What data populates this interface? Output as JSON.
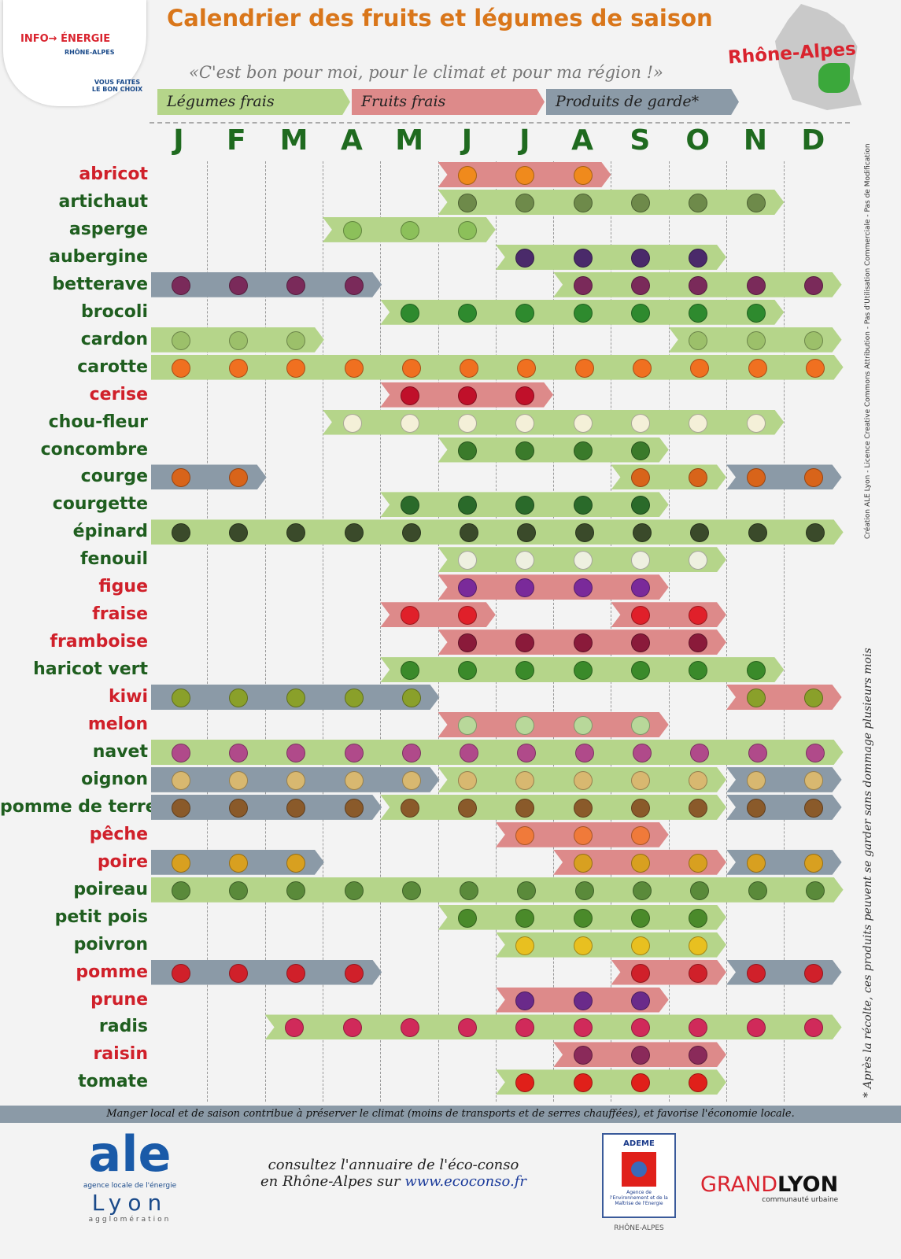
{
  "header": {
    "title": "Calendrier des fruits et légumes de saison",
    "slogan": "«C'est bon pour moi, pour le climat et pour ma région !»",
    "region": "Rhône-Alpes",
    "info_logo": {
      "line1": "INFO→ ÉNERGIE",
      "line2": "RHÔNE-ALPES",
      "tag": "VOUS FAITES LE BON CHOIX"
    }
  },
  "legend": {
    "legume": "Légumes frais",
    "fruit": "Fruits frais",
    "garde": "Produits de garde*"
  },
  "colors": {
    "legume": "#b5d58a",
    "fruit": "#dd8a8a",
    "garde": "#8b9aa7",
    "legume_name": "#1f5e1f",
    "fruit_name": "#d0202a",
    "title": "#d9761a"
  },
  "months": [
    "J",
    "F",
    "M",
    "A",
    "M",
    "J",
    "J",
    "A",
    "S",
    "O",
    "N",
    "D"
  ],
  "items": [
    {
      "name": "abricot",
      "kind": "fruit",
      "icon": "apricot-icon",
      "icon_color": "#f08a1c",
      "bars": [
        {
          "type": "fruit",
          "from": 6,
          "to": 8
        }
      ]
    },
    {
      "name": "artichaut",
      "kind": "legume",
      "icon": "artichoke-icon",
      "icon_color": "#6e8a4a",
      "bars": [
        {
          "type": "legume",
          "from": 6,
          "to": 11
        }
      ]
    },
    {
      "name": "asperge",
      "kind": "legume",
      "icon": "asparagus-icon",
      "icon_color": "#8cc05a",
      "bars": [
        {
          "type": "legume",
          "from": 4,
          "to": 6
        }
      ]
    },
    {
      "name": "aubergine",
      "kind": "legume",
      "icon": "eggplant-icon",
      "icon_color": "#4a2a6a",
      "bars": [
        {
          "type": "legume",
          "from": 7,
          "to": 10
        }
      ]
    },
    {
      "name": "betterave",
      "kind": "legume",
      "icon": "beet-icon",
      "icon_color": "#7a2a5a",
      "bars": [
        {
          "type": "garde",
          "from": 1,
          "to": 4
        },
        {
          "type": "legume",
          "from": 8,
          "to": 12
        }
      ]
    },
    {
      "name": "brocoli",
      "kind": "legume",
      "icon": "broccoli-icon",
      "icon_color": "#2e8a2e",
      "bars": [
        {
          "type": "legume",
          "from": 5,
          "to": 11
        }
      ]
    },
    {
      "name": "cardon",
      "kind": "legume",
      "icon": "cardoon-icon",
      "icon_color": "#9cc06a",
      "bars": [
        {
          "type": "legume",
          "from": 1,
          "to": 3
        },
        {
          "type": "legume",
          "from": 10,
          "to": 12
        }
      ]
    },
    {
      "name": "carotte",
      "kind": "legume",
      "icon": "carrot-icon",
      "icon_color": "#f07020",
      "bars": [
        {
          "type": "legume",
          "from": 1,
          "to": 12
        }
      ]
    },
    {
      "name": "cerise",
      "kind": "fruit",
      "icon": "cherry-icon",
      "icon_color": "#c0102a",
      "bars": [
        {
          "type": "fruit",
          "from": 5,
          "to": 7
        }
      ]
    },
    {
      "name": "chou-fleur",
      "kind": "legume",
      "icon": "cauliflower-icon",
      "icon_color": "#f4f0d8",
      "bars": [
        {
          "type": "legume",
          "from": 4,
          "to": 11
        }
      ]
    },
    {
      "name": "concombre",
      "kind": "legume",
      "icon": "cucumber-icon",
      "icon_color": "#3a7a2a",
      "bars": [
        {
          "type": "legume",
          "from": 6,
          "to": 9
        }
      ]
    },
    {
      "name": "courge",
      "kind": "legume",
      "icon": "pumpkin-icon",
      "icon_color": "#d8641a",
      "bars": [
        {
          "type": "garde",
          "from": 1,
          "to": 2
        },
        {
          "type": "legume",
          "from": 9,
          "to": 10
        },
        {
          "type": "garde",
          "from": 11,
          "to": 12
        }
      ]
    },
    {
      "name": "courgette",
      "kind": "legume",
      "icon": "zucchini-icon",
      "icon_color": "#2a6a2a",
      "bars": [
        {
          "type": "legume",
          "from": 5,
          "to": 9
        }
      ]
    },
    {
      "name": "épinard",
      "kind": "legume",
      "icon": "spinach-icon",
      "icon_color": "#3a4a2a",
      "bars": [
        {
          "type": "legume",
          "from": 1,
          "to": 12
        }
      ]
    },
    {
      "name": "fenouil",
      "kind": "legume",
      "icon": "fennel-icon",
      "icon_color": "#eef0e0",
      "bars": [
        {
          "type": "legume",
          "from": 6,
          "to": 10
        }
      ]
    },
    {
      "name": "figue",
      "kind": "fruit",
      "icon": "fig-icon",
      "icon_color": "#7a2a9a",
      "bars": [
        {
          "type": "fruit",
          "from": 6,
          "to": 9
        }
      ]
    },
    {
      "name": "fraise",
      "kind": "fruit",
      "icon": "strawberry-icon",
      "icon_color": "#e0202a",
      "bars": [
        {
          "type": "fruit",
          "from": 5,
          "to": 6
        },
        {
          "type": "fruit",
          "from": 9,
          "to": 10
        }
      ]
    },
    {
      "name": "framboise",
      "kind": "fruit",
      "icon": "raspberry-icon",
      "icon_color": "#8a1a3a",
      "bars": [
        {
          "type": "fruit",
          "from": 6,
          "to": 10
        }
      ]
    },
    {
      "name": "haricot vert",
      "kind": "legume",
      "icon": "green-bean-icon",
      "icon_color": "#3a8a2a",
      "bars": [
        {
          "type": "legume",
          "from": 5,
          "to": 11
        }
      ]
    },
    {
      "name": "kiwi",
      "kind": "fruit",
      "icon": "kiwi-icon",
      "icon_color": "#8aa02a",
      "bars": [
        {
          "type": "garde",
          "from": 1,
          "to": 5
        },
        {
          "type": "fruit",
          "from": 11,
          "to": 12
        }
      ]
    },
    {
      "name": "melon",
      "kind": "fruit",
      "icon": "melon-icon",
      "icon_color": "#b8d89a",
      "bars": [
        {
          "type": "fruit",
          "from": 6,
          "to": 9
        }
      ]
    },
    {
      "name": "navet",
      "kind": "legume",
      "icon": "turnip-icon",
      "icon_color": "#b04a8a",
      "bars": [
        {
          "type": "legume",
          "from": 1,
          "to": 12
        }
      ]
    },
    {
      "name": "oignon",
      "kind": "legume",
      "icon": "onion-icon",
      "icon_color": "#d8b870",
      "bars": [
        {
          "type": "garde",
          "from": 1,
          "to": 5
        },
        {
          "type": "legume",
          "from": 6,
          "to": 10
        },
        {
          "type": "garde",
          "from": 11,
          "to": 12
        }
      ]
    },
    {
      "name": "pomme de terre",
      "kind": "legume",
      "icon": "potato-icon",
      "icon_color": "#8a5a2a",
      "bars": [
        {
          "type": "garde",
          "from": 1,
          "to": 4
        },
        {
          "type": "legume",
          "from": 5,
          "to": 10
        },
        {
          "type": "garde",
          "from": 11,
          "to": 12
        }
      ]
    },
    {
      "name": "pêche",
      "kind": "fruit",
      "icon": "peach-icon",
      "icon_color": "#f07a3a",
      "bars": [
        {
          "type": "fruit",
          "from": 7,
          "to": 9
        }
      ]
    },
    {
      "name": "poire",
      "kind": "fruit",
      "icon": "pear-icon",
      "icon_color": "#d8a020",
      "bars": [
        {
          "type": "garde",
          "from": 1,
          "to": 3
        },
        {
          "type": "fruit",
          "from": 8,
          "to": 10
        },
        {
          "type": "garde",
          "from": 11,
          "to": 12
        }
      ]
    },
    {
      "name": "poireau",
      "kind": "legume",
      "icon": "leek-icon",
      "icon_color": "#5a8a3a",
      "bars": [
        {
          "type": "legume",
          "from": 1,
          "to": 12
        }
      ]
    },
    {
      "name": "petit pois",
      "kind": "legume",
      "icon": "pea-icon",
      "icon_color": "#4a8a2a",
      "bars": [
        {
          "type": "legume",
          "from": 6,
          "to": 10
        }
      ]
    },
    {
      "name": "poivron",
      "kind": "legume",
      "icon": "pepper-icon",
      "icon_color": "#e8c020",
      "bars": [
        {
          "type": "legume",
          "from": 7,
          "to": 10
        }
      ]
    },
    {
      "name": "pomme",
      "kind": "fruit",
      "icon": "apple-icon",
      "icon_color": "#d0202a",
      "bars": [
        {
          "type": "garde",
          "from": 1,
          "to": 4
        },
        {
          "type": "fruit",
          "from": 9,
          "to": 10
        },
        {
          "type": "garde",
          "from": 11,
          "to": 12
        }
      ]
    },
    {
      "name": "prune",
      "kind": "fruit",
      "icon": "plum-icon",
      "icon_color": "#6a2a8a",
      "bars": [
        {
          "type": "fruit",
          "from": 7,
          "to": 9
        }
      ]
    },
    {
      "name": "radis",
      "kind": "legume",
      "icon": "radish-icon",
      "icon_color": "#d02a5a",
      "bars": [
        {
          "type": "legume",
          "from": 3,
          "to": 12
        }
      ]
    },
    {
      "name": "raisin",
      "kind": "fruit",
      "icon": "grape-icon",
      "icon_color": "#8a2a5a",
      "bars": [
        {
          "type": "fruit",
          "from": 8,
          "to": 10
        }
      ]
    },
    {
      "name": "tomate",
      "kind": "legume",
      "icon": "tomato-icon",
      "icon_color": "#e0201a",
      "bars": [
        {
          "type": "legume",
          "from": 7,
          "to": 10
        }
      ]
    }
  ],
  "side_note": "* Après la récolte, ces produits peuvent se garder sans dommage plusieurs mois",
  "license": "Création ALE Lyon - Licence Creative Commons Attribution - Pas d'Utilisation Commerciale - Pas de Modification",
  "footer": {
    "band": "Manger local et de saison contribue à préserver le climat (moins de transports et de serres chauffées), et favorise l'économie locale.",
    "consult_line1": "consultez l'annuaire de l'éco-conso",
    "consult_line2": "en Rhône-Alpes sur",
    "link": "www.ecoconso.fr",
    "ale": {
      "mark": "ale",
      "sub": "agence locale de l'énergie",
      "city": "Lyon",
      "area": "agglomération"
    },
    "ademe": {
      "name": "ADEME",
      "sub": "Agence de l'Environnement et de la Maîtrise de l'Energie",
      "region": "RHÔNE-ALPES"
    },
    "grandlyon": {
      "grand": "GRAND",
      "lyon": "LYON",
      "sub": "communauté urbaine"
    }
  }
}
